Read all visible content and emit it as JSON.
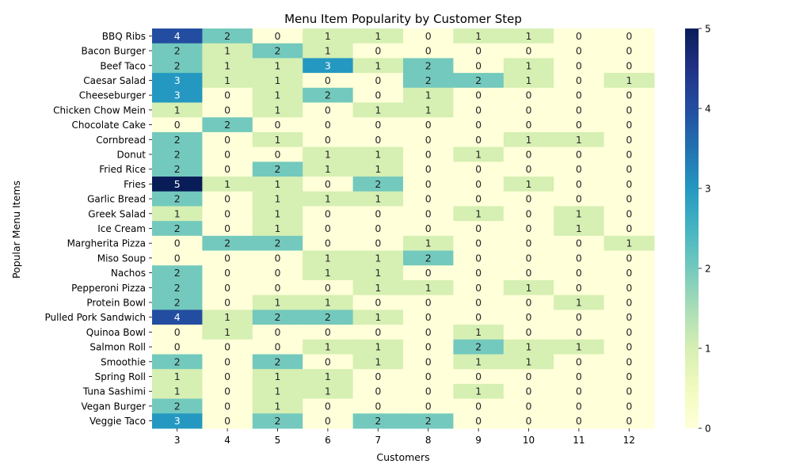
{
  "chart_data": {
    "type": "heatmap",
    "title": "Menu Item Popularity by Customer Step",
    "xlabel": "Customers",
    "ylabel": "Popular Menu Items",
    "x": [
      "3",
      "4",
      "5",
      "6",
      "7",
      "8",
      "9",
      "10",
      "11",
      "12"
    ],
    "y": [
      "BBQ Ribs",
      "Bacon Burger",
      "Beef Taco",
      "Caesar Salad",
      "Cheeseburger",
      "Chicken Chow Mein",
      "Chocolate Cake",
      "Cornbread",
      "Donut",
      "Fried Rice",
      "Fries",
      "Garlic Bread",
      "Greek Salad",
      "Ice Cream",
      "Margherita Pizza",
      "Miso Soup",
      "Nachos",
      "Pepperoni Pizza",
      "Protein Bowl",
      "Pulled Pork Sandwich",
      "Quinoa Bowl",
      "Salmon Roll",
      "Smoothie",
      "Spring Roll",
      "Tuna Sashimi",
      "Vegan Burger",
      "Veggie Taco"
    ],
    "values": [
      [
        4,
        2,
        0,
        1,
        1,
        0,
        1,
        1,
        0,
        0
      ],
      [
        2,
        1,
        2,
        1,
        0,
        0,
        0,
        0,
        0,
        0
      ],
      [
        2,
        1,
        1,
        3,
        1,
        2,
        0,
        1,
        0,
        0
      ],
      [
        3,
        1,
        1,
        0,
        0,
        2,
        2,
        1,
        0,
        1
      ],
      [
        3,
        0,
        1,
        2,
        0,
        1,
        0,
        0,
        0,
        0
      ],
      [
        1,
        0,
        1,
        0,
        1,
        1,
        0,
        0,
        0,
        0
      ],
      [
        0,
        2,
        0,
        0,
        0,
        0,
        0,
        0,
        0,
        0
      ],
      [
        2,
        0,
        1,
        0,
        0,
        0,
        0,
        1,
        1,
        0
      ],
      [
        2,
        0,
        0,
        1,
        1,
        0,
        1,
        0,
        0,
        0
      ],
      [
        2,
        0,
        2,
        1,
        1,
        0,
        0,
        0,
        0,
        0
      ],
      [
        5,
        1,
        1,
        0,
        2,
        0,
        0,
        1,
        0,
        0
      ],
      [
        2,
        0,
        1,
        1,
        1,
        0,
        0,
        0,
        0,
        0
      ],
      [
        1,
        0,
        1,
        0,
        0,
        0,
        1,
        0,
        1,
        0
      ],
      [
        2,
        0,
        1,
        0,
        0,
        0,
        0,
        0,
        1,
        0
      ],
      [
        0,
        2,
        2,
        0,
        0,
        1,
        0,
        0,
        0,
        1
      ],
      [
        0,
        0,
        0,
        1,
        1,
        2,
        0,
        0,
        0,
        0
      ],
      [
        2,
        0,
        0,
        1,
        1,
        0,
        0,
        0,
        0,
        0
      ],
      [
        2,
        0,
        0,
        0,
        1,
        1,
        0,
        1,
        0,
        0
      ],
      [
        2,
        0,
        1,
        1,
        0,
        0,
        0,
        0,
        1,
        0
      ],
      [
        4,
        1,
        2,
        2,
        1,
        0,
        0,
        0,
        0,
        0
      ],
      [
        0,
        1,
        0,
        0,
        0,
        0,
        1,
        0,
        0,
        0
      ],
      [
        0,
        0,
        0,
        1,
        1,
        0,
        2,
        1,
        1,
        0
      ],
      [
        2,
        0,
        2,
        0,
        1,
        0,
        1,
        1,
        0,
        0
      ],
      [
        1,
        0,
        1,
        1,
        0,
        0,
        0,
        0,
        0,
        0
      ],
      [
        1,
        0,
        1,
        1,
        0,
        0,
        1,
        0,
        0,
        0
      ],
      [
        2,
        0,
        1,
        0,
        0,
        0,
        0,
        0,
        0,
        0
      ],
      [
        3,
        0,
        2,
        0,
        2,
        2,
        0,
        0,
        0,
        0
      ]
    ],
    "colorbar": {
      "min": 0,
      "max": 5,
      "ticks": [
        "0",
        "1",
        "2",
        "3",
        "4",
        "5"
      ]
    },
    "colormap": {
      "0": "#ffffd9",
      "1": "#d6efb3",
      "2": "#73c9bd",
      "3": "#2498c1",
      "4": "#234da0",
      "5": "#081d58"
    },
    "grid": false,
    "legend": "colorbar-right"
  }
}
